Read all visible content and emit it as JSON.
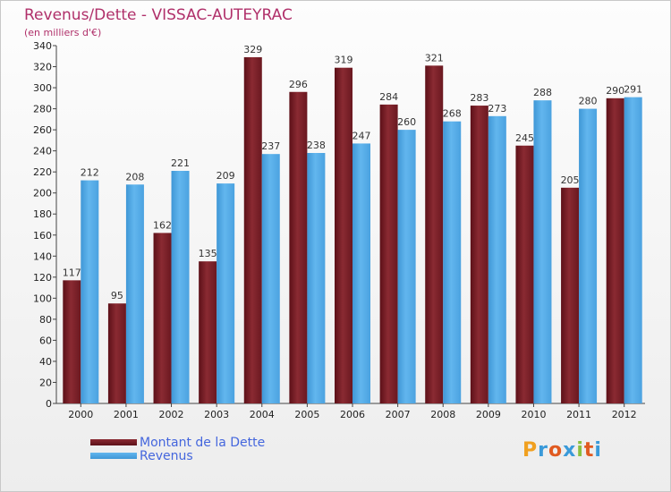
{
  "header": {
    "title": "Revenus/Dette - VISSAC-AUTEYRAC",
    "subtitle": "(en milliers d'€)"
  },
  "legend": {
    "debt_label": "Montant de la Dette",
    "revenue_label": "Revenus"
  },
  "logo": {
    "letters": [
      "P",
      "r",
      "o",
      "x",
      "i",
      "t",
      "i"
    ],
    "colors": [
      "#f0a020",
      "#3a9ad9",
      "#e05a20",
      "#3a9ad9",
      "#8ac040",
      "#e05a20",
      "#3a9ad9"
    ]
  },
  "colors": {
    "debt": "#7a1c24",
    "revenue": "#4da6e6"
  },
  "chart_data": {
    "type": "bar",
    "title": "Revenus/Dette - VISSAC-AUTEYRAC",
    "subtitle": "(en milliers d'€)",
    "categories": [
      "2000",
      "2001",
      "2002",
      "2003",
      "2004",
      "2005",
      "2006",
      "2007",
      "2008",
      "2009",
      "2010",
      "2011",
      "2012"
    ],
    "series": [
      {
        "name": "Montant de la Dette",
        "values": [
          117,
          95,
          162,
          135,
          329,
          296,
          319,
          284,
          321,
          283,
          245,
          205,
          290
        ]
      },
      {
        "name": "Revenus",
        "values": [
          212,
          208,
          221,
          209,
          237,
          238,
          247,
          260,
          268,
          273,
          288,
          280,
          291
        ]
      }
    ],
    "ylim": [
      0,
      340
    ],
    "yticks": [
      0,
      20,
      40,
      60,
      80,
      100,
      120,
      140,
      160,
      180,
      200,
      220,
      240,
      260,
      280,
      300,
      320,
      340
    ],
    "grid": false,
    "legend_position": "bottom-left"
  }
}
